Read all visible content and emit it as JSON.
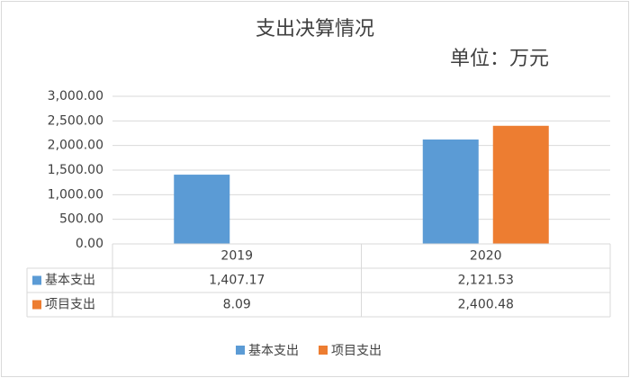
{
  "chart_data": {
    "type": "bar",
    "title": "支出决算情况",
    "subtitle": "单位：万元",
    "categories": [
      "2019",
      "2020"
    ],
    "series": [
      {
        "name": "基本支出",
        "color": "#5b9bd5",
        "values": [
          1407.17,
          2121.53
        ],
        "value_labels": [
          "1,407.17",
          "2,121.53"
        ]
      },
      {
        "name": "项目支出",
        "color": "#ed7d31",
        "values": [
          8.09,
          2400.48
        ],
        "value_labels": [
          "8.09",
          "2,400.48"
        ]
      }
    ],
    "ylim": [
      0,
      3000
    ],
    "yticks": [
      {
        "value": 0,
        "label": "0.00"
      },
      {
        "value": 500,
        "label": "500.00"
      },
      {
        "value": 1000,
        "label": "1,000.00"
      },
      {
        "value": 1500,
        "label": "1,500.00"
      },
      {
        "value": 2000,
        "label": "2,000.00"
      },
      {
        "value": 2500,
        "label": "2,500.00"
      },
      {
        "value": 3000,
        "label": "3,000.00"
      }
    ],
    "grid": true,
    "data_table": true,
    "legend": "bottom"
  }
}
